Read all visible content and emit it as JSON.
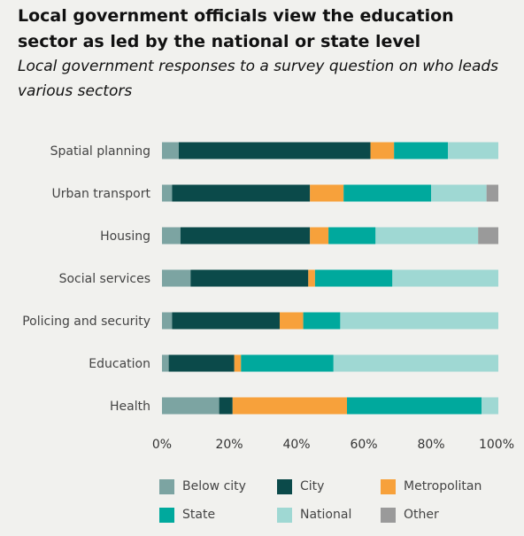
{
  "header": {
    "title": "Local government officials view the education sector as led by the national or state level",
    "subtitle": "Local government responses to a survey question on who leads various sectors"
  },
  "chart_data": {
    "type": "bar",
    "orientation": "horizontal",
    "stacked": true,
    "title": "Local government officials view the education sector as led by the national or state level",
    "subtitle": "Local government responses to a survey question on who leads various sectors",
    "xlabel": "",
    "ylabel": "",
    "xlim": [
      0,
      100
    ],
    "x_ticks": [
      "0%",
      "20%",
      "40%",
      "60%",
      "80%",
      "100%"
    ],
    "grid": false,
    "legend_position": "bottom",
    "categories": [
      "Spatial planning",
      "Urban transport",
      "Housing",
      "Social services",
      "Policing and security",
      "Education",
      "Health"
    ],
    "series": [
      {
        "name": "Below city",
        "color": "#7ca4a2",
        "values": [
          5,
          3,
          5.5,
          8.5,
          3,
          2,
          17
        ]
      },
      {
        "name": "City",
        "color": "#0b4a4a",
        "values": [
          57,
          41,
          38.5,
          35,
          32,
          19.5,
          4
        ]
      },
      {
        "name": "Metropolitan",
        "color": "#f7a13b",
        "values": [
          7,
          10,
          5.5,
          2,
          7,
          2,
          34
        ]
      },
      {
        "name": "State",
        "color": "#00a99d",
        "values": [
          16,
          26,
          14,
          23,
          11,
          27.5,
          40
        ]
      },
      {
        "name": "National",
        "color": "#9fd8d3",
        "values": [
          15,
          16.5,
          30.5,
          31.5,
          47,
          49,
          5
        ]
      },
      {
        "name": "Other",
        "color": "#9a9a9a",
        "values": [
          0,
          3.5,
          6,
          0,
          0,
          0,
          0
        ]
      }
    ]
  }
}
